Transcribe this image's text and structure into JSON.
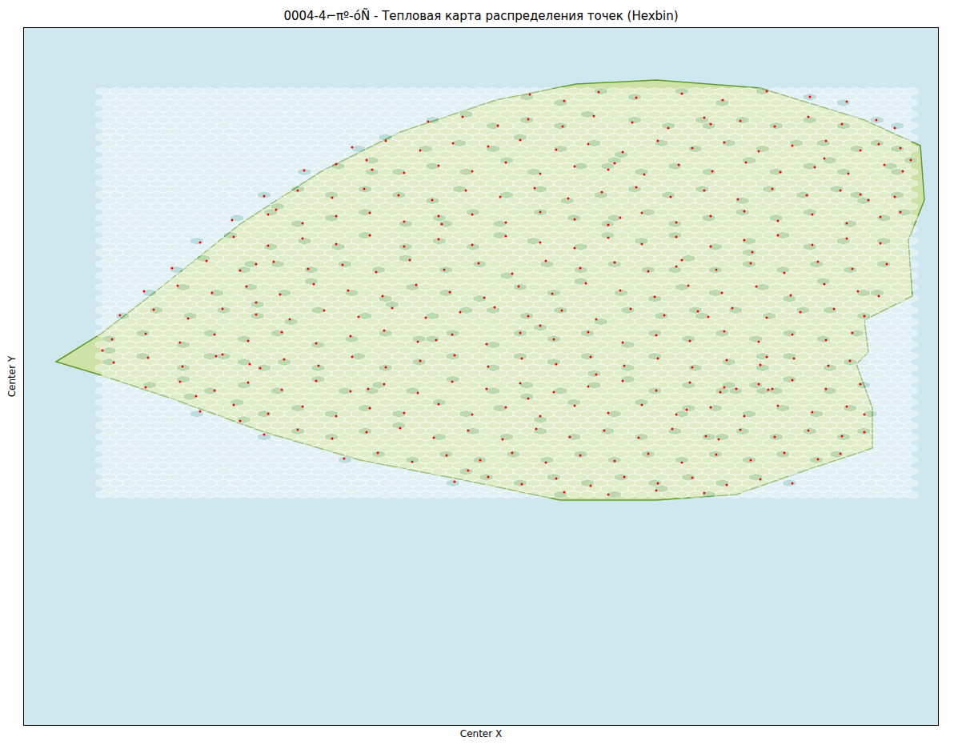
{
  "chart_data": {
    "type": "hexbin",
    "title": "0004-4⌐πº-óÑ - Тепловая карта распределения точек (Hexbin)",
    "x_label": "Center X",
    "y_label": "Center Y",
    "xlim": [
      30,
      1172
    ],
    "ylim": [
      906,
      35
    ],
    "xticks": [],
    "yticks": [],
    "tick_labels": false,
    "grid": false,
    "color": "red",
    "marker": "circle",
    "points": [
      [
        128,
        438
      ],
      [
        1138,
        200
      ],
      [
        662,
        118
      ],
      [
        705,
        126
      ],
      [
        748,
        115
      ],
      [
        795,
        122
      ],
      [
        852,
        117
      ],
      [
        903,
        125
      ],
      [
        958,
        114
      ],
      [
        1012,
        121
      ],
      [
        1058,
        127
      ],
      [
        535,
        152
      ],
      [
        578,
        146
      ],
      [
        622,
        157
      ],
      [
        660,
        149
      ],
      [
        703,
        158
      ],
      [
        742,
        145
      ],
      [
        790,
        153
      ],
      [
        835,
        160
      ],
      [
        880,
        147
      ],
      [
        888,
        155
      ],
      [
        925,
        151
      ],
      [
        968,
        158
      ],
      [
        1010,
        146
      ],
      [
        1052,
        155
      ],
      [
        1095,
        150
      ],
      [
        1118,
        160
      ],
      [
        440,
        184
      ],
      [
        482,
        176
      ],
      [
        525,
        188
      ],
      [
        566,
        179
      ],
      [
        610,
        183
      ],
      [
        650,
        175
      ],
      [
        695,
        187
      ],
      [
        735,
        180
      ],
      [
        778,
        190
      ],
      [
        822,
        176
      ],
      [
        865,
        185
      ],
      [
        905,
        178
      ],
      [
        948,
        189
      ],
      [
        990,
        182
      ],
      [
        1032,
        176
      ],
      [
        1075,
        188
      ],
      [
        1098,
        180
      ],
      [
        1125,
        185
      ],
      [
        380,
        213
      ],
      [
        420,
        205
      ],
      [
        458,
        200
      ],
      [
        465,
        212
      ],
      [
        505,
        216
      ],
      [
        548,
        207
      ],
      [
        590,
        214
      ],
      [
        632,
        203
      ],
      [
        675,
        217
      ],
      [
        718,
        208
      ],
      [
        760,
        212
      ],
      [
        768,
        204
      ],
      [
        805,
        218
      ],
      [
        848,
        206
      ],
      [
        890,
        214
      ],
      [
        932,
        203
      ],
      [
        975,
        215
      ],
      [
        1018,
        209
      ],
      [
        1030,
        198
      ],
      [
        1060,
        217
      ],
      [
        1105,
        206
      ],
      [
        1128,
        214
      ],
      [
        330,
        245
      ],
      [
        372,
        238
      ],
      [
        415,
        247
      ],
      [
        455,
        236
      ],
      [
        498,
        244
      ],
      [
        540,
        250
      ],
      [
        582,
        238
      ],
      [
        625,
        246
      ],
      [
        668,
        235
      ],
      [
        710,
        248
      ],
      [
        752,
        240
      ],
      [
        795,
        234
      ],
      [
        838,
        246
      ],
      [
        880,
        238
      ],
      [
        922,
        249
      ],
      [
        965,
        236
      ],
      [
        1008,
        244
      ],
      [
        1050,
        238
      ],
      [
        1075,
        243
      ],
      [
        1085,
        250
      ],
      [
        1118,
        246
      ],
      [
        290,
        275
      ],
      [
        335,
        268
      ],
      [
        345,
        262
      ],
      [
        378,
        279
      ],
      [
        420,
        270
      ],
      [
        462,
        266
      ],
      [
        505,
        277
      ],
      [
        548,
        270
      ],
      [
        552,
        280
      ],
      [
        590,
        268
      ],
      [
        632,
        278
      ],
      [
        675,
        265
      ],
      [
        718,
        274
      ],
      [
        760,
        281
      ],
      [
        775,
        272
      ],
      [
        802,
        266
      ],
      [
        845,
        278
      ],
      [
        888,
        270
      ],
      [
        930,
        264
      ],
      [
        972,
        276
      ],
      [
        1015,
        268
      ],
      [
        1058,
        279
      ],
      [
        1100,
        271
      ],
      [
        1125,
        265
      ],
      [
        250,
        303
      ],
      [
        292,
        296
      ],
      [
        335,
        307
      ],
      [
        378,
        298
      ],
      [
        420,
        305
      ],
      [
        462,
        294
      ],
      [
        505,
        308
      ],
      [
        548,
        299
      ],
      [
        590,
        306
      ],
      [
        632,
        295
      ],
      [
        675,
        303
      ],
      [
        718,
        310
      ],
      [
        760,
        297
      ],
      [
        802,
        305
      ],
      [
        845,
        296
      ],
      [
        888,
        308
      ],
      [
        930,
        300
      ],
      [
        940,
        315
      ],
      [
        972,
        294
      ],
      [
        1015,
        306
      ],
      [
        1058,
        298
      ],
      [
        1100,
        304
      ],
      [
        215,
        335
      ],
      [
        258,
        326
      ],
      [
        300,
        338
      ],
      [
        320,
        330
      ],
      [
        342,
        327
      ],
      [
        385,
        336
      ],
      [
        428,
        331
      ],
      [
        470,
        340
      ],
      [
        512,
        325
      ],
      [
        555,
        337
      ],
      [
        598,
        329
      ],
      [
        640,
        342
      ],
      [
        682,
        326
      ],
      [
        725,
        335
      ],
      [
        768,
        328
      ],
      [
        810,
        339
      ],
      [
        845,
        333
      ],
      [
        852,
        325
      ],
      [
        895,
        337
      ],
      [
        938,
        329
      ],
      [
        980,
        341
      ],
      [
        1022,
        327
      ],
      [
        1065,
        336
      ],
      [
        1108,
        330
      ],
      [
        180,
        364
      ],
      [
        222,
        357
      ],
      [
        265,
        366
      ],
      [
        308,
        358
      ],
      [
        320,
        378
      ],
      [
        350,
        368
      ],
      [
        392,
        355
      ],
      [
        435,
        363
      ],
      [
        478,
        370
      ],
      [
        520,
        356
      ],
      [
        562,
        365
      ],
      [
        605,
        372
      ],
      [
        648,
        358
      ],
      [
        690,
        367
      ],
      [
        732,
        354
      ],
      [
        775,
        363
      ],
      [
        818,
        371
      ],
      [
        860,
        357
      ],
      [
        902,
        366
      ],
      [
        945,
        358
      ],
      [
        988,
        369
      ],
      [
        1030,
        355
      ],
      [
        1072,
        364
      ],
      [
        1098,
        370
      ],
      [
        150,
        394
      ],
      [
        192,
        387
      ],
      [
        235,
        398
      ],
      [
        278,
        386
      ],
      [
        320,
        393
      ],
      [
        362,
        399
      ],
      [
        405,
        388
      ],
      [
        448,
        396
      ],
      [
        490,
        385
      ],
      [
        532,
        397
      ],
      [
        575,
        390
      ],
      [
        618,
        384
      ],
      [
        660,
        395
      ],
      [
        702,
        388
      ],
      [
        745,
        399
      ],
      [
        788,
        386
      ],
      [
        830,
        394
      ],
      [
        872,
        389
      ],
      [
        885,
        396
      ],
      [
        915,
        385
      ],
      [
        958,
        397
      ],
      [
        1000,
        390
      ],
      [
        1042,
        386
      ],
      [
        1080,
        395
      ],
      [
        140,
        424
      ],
      [
        182,
        417
      ],
      [
        225,
        428
      ],
      [
        268,
        418
      ],
      [
        310,
        426
      ],
      [
        352,
        415
      ],
      [
        395,
        429
      ],
      [
        438,
        420
      ],
      [
        480,
        413
      ],
      [
        522,
        427
      ],
      [
        545,
        425
      ],
      [
        565,
        418
      ],
      [
        608,
        430
      ],
      [
        650,
        416
      ],
      [
        675,
        407
      ],
      [
        692,
        424
      ],
      [
        735,
        415
      ],
      [
        778,
        428
      ],
      [
        820,
        419
      ],
      [
        862,
        426
      ],
      [
        905,
        414
      ],
      [
        948,
        427
      ],
      [
        990,
        418
      ],
      [
        1032,
        425
      ],
      [
        1065,
        416
      ],
      [
        142,
        453
      ],
      [
        185,
        447
      ],
      [
        228,
        458
      ],
      [
        270,
        445
      ],
      [
        278,
        443
      ],
      [
        312,
        455
      ],
      [
        325,
        460
      ],
      [
        355,
        449
      ],
      [
        398,
        457
      ],
      [
        440,
        446
      ],
      [
        482,
        459
      ],
      [
        525,
        451
      ],
      [
        568,
        444
      ],
      [
        610,
        458
      ],
      [
        652,
        448
      ],
      [
        695,
        455
      ],
      [
        738,
        446
      ],
      [
        745,
        468
      ],
      [
        780,
        457
      ],
      [
        822,
        448
      ],
      [
        865,
        459
      ],
      [
        908,
        450
      ],
      [
        950,
        456
      ],
      [
        958,
        446
      ],
      [
        965,
        486
      ],
      [
        992,
        448
      ],
      [
        1035,
        457
      ],
      [
        1062,
        451
      ],
      [
        182,
        484
      ],
      [
        225,
        477
      ],
      [
        245,
        495
      ],
      [
        268,
        488
      ],
      [
        310,
        478
      ],
      [
        352,
        487
      ],
      [
        395,
        476
      ],
      [
        438,
        489
      ],
      [
        460,
        486
      ],
      [
        480,
        480
      ],
      [
        522,
        491
      ],
      [
        565,
        477
      ],
      [
        608,
        486
      ],
      [
        650,
        479
      ],
      [
        692,
        490
      ],
      [
        735,
        483
      ],
      [
        778,
        476
      ],
      [
        820,
        488
      ],
      [
        862,
        478
      ],
      [
        900,
        490
      ],
      [
        905,
        484
      ],
      [
        920,
        486
      ],
      [
        948,
        480
      ],
      [
        960,
        487
      ],
      [
        990,
        475
      ],
      [
        1032,
        486
      ],
      [
        1075,
        480
      ],
      [
        250,
        514
      ],
      [
        292,
        506
      ],
      [
        300,
        526
      ],
      [
        335,
        517
      ],
      [
        378,
        508
      ],
      [
        420,
        520
      ],
      [
        462,
        510
      ],
      [
        505,
        516
      ],
      [
        548,
        505
      ],
      [
        590,
        518
      ],
      [
        632,
        509
      ],
      [
        660,
        498
      ],
      [
        675,
        520
      ],
      [
        718,
        507
      ],
      [
        760,
        516
      ],
      [
        802,
        506
      ],
      [
        845,
        518
      ],
      [
        858,
        512
      ],
      [
        888,
        509
      ],
      [
        930,
        520
      ],
      [
        972,
        507
      ],
      [
        1015,
        515
      ],
      [
        1058,
        508
      ],
      [
        1080,
        518
      ],
      [
        330,
        543
      ],
      [
        372,
        537
      ],
      [
        415,
        548
      ],
      [
        458,
        540
      ],
      [
        500,
        535
      ],
      [
        542,
        547
      ],
      [
        585,
        538
      ],
      [
        628,
        549
      ],
      [
        670,
        536
      ],
      [
        712,
        546
      ],
      [
        755,
        538
      ],
      [
        798,
        547
      ],
      [
        840,
        536
      ],
      [
        882,
        545
      ],
      [
        898,
        549
      ],
      [
        925,
        537
      ],
      [
        968,
        546
      ],
      [
        1010,
        538
      ],
      [
        1052,
        545
      ],
      [
        1080,
        540
      ],
      [
        430,
        573
      ],
      [
        472,
        566
      ],
      [
        515,
        577
      ],
      [
        558,
        569
      ],
      [
        600,
        575
      ],
      [
        640,
        566
      ],
      [
        682,
        578
      ],
      [
        725,
        569
      ],
      [
        768,
        576
      ],
      [
        810,
        567
      ],
      [
        852,
        578
      ],
      [
        895,
        568
      ],
      [
        938,
        575
      ],
      [
        980,
        566
      ],
      [
        1022,
        574
      ],
      [
        1050,
        567
      ],
      [
        568,
        602
      ],
      [
        585,
        588
      ],
      [
        610,
        596
      ],
      [
        652,
        605
      ],
      [
        695,
        598
      ],
      [
        738,
        607
      ],
      [
        780,
        596
      ],
      [
        822,
        604
      ],
      [
        865,
        597
      ],
      [
        908,
        606
      ],
      [
        950,
        599
      ],
      [
        990,
        604
      ],
      [
        705,
        615
      ],
      [
        760,
        618
      ],
      [
        820,
        613
      ],
      [
        880,
        616
      ]
    ]
  }
}
